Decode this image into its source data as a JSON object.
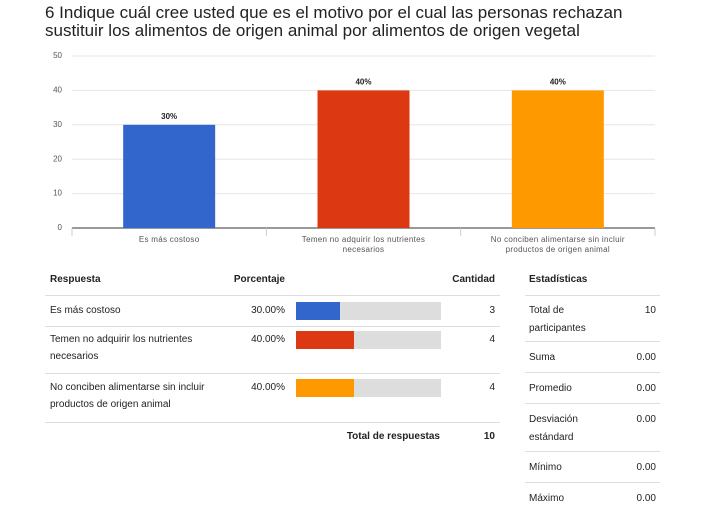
{
  "chart_data": {
    "type": "bar",
    "title": "6 Indique cuál cree usted que es el motivo por el cual las personas rechazan sustituir los alimentos de origen animal por alimentos de origen vegetal",
    "categories": [
      "Es más costoso",
      "Temen no adquirir los nutrientes necesarios",
      "No conciben alimentarse sin incluir productos de origen animal"
    ],
    "values": [
      30,
      40,
      40
    ],
    "value_labels": [
      "30%",
      "40%",
      "40%"
    ],
    "colors": [
      "#3366cc",
      "#dc3912",
      "#ff9900"
    ],
    "ylim": [
      0,
      50
    ],
    "yticks": [
      0,
      10,
      20,
      30,
      40,
      50
    ],
    "grid": true
  },
  "table": {
    "headers": [
      "Respuesta",
      "Porcentaje",
      "Cantidad"
    ],
    "rows": [
      {
        "response": "Es más costoso",
        "percent": 30,
        "percent_label": "30.00%",
        "count": 3
      },
      {
        "response": "Temen no adquirir los nutrientes necesarios",
        "percent": 40,
        "percent_label": "40.00%",
        "count": 4
      },
      {
        "response": "No conciben alimentarse sin incluir productos de origen animal",
        "percent": 40,
        "percent_label": "40.00%",
        "count": 4
      }
    ],
    "total_label": "Total de respuestas",
    "total": 10
  },
  "stats": {
    "header": "Estadísticas",
    "rows": [
      {
        "label": "Total de participantes",
        "value": "10"
      },
      {
        "label": "Suma",
        "value": "0.00"
      },
      {
        "label": "Promedio",
        "value": "0.00"
      },
      {
        "label": "Desviación estándard",
        "value": "0.00"
      },
      {
        "label": "Mínimo",
        "value": "0.00"
      },
      {
        "label": "Máximo",
        "value": "0.00"
      }
    ]
  }
}
